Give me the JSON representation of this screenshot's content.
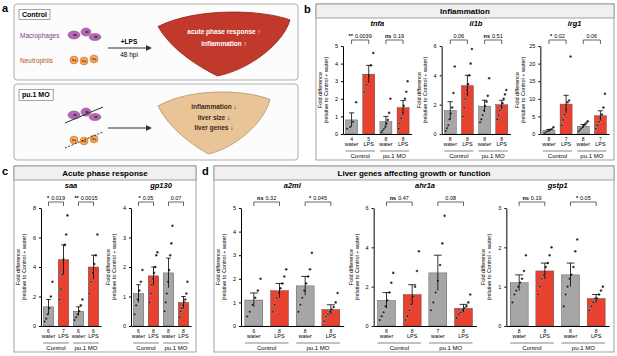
{
  "diagram": {
    "label": "a",
    "cell_labels": [
      "Macrophages",
      "Neutrophils"
    ],
    "treatment": "+LPS",
    "time": "48 hpi",
    "rows": [
      {
        "title": "Control",
        "outcomes": [
          "acute phase response ↑",
          "inflammation ↑"
        ]
      },
      {
        "title": "pu.1 MO",
        "outcomes": [
          "inflammation ↓",
          "liver size ↓",
          "liver genes ↓"
        ]
      }
    ]
  },
  "sections": [
    {
      "label": "b",
      "title": "Inflammation"
    },
    {
      "label": "c",
      "title": "Acute phase response"
    },
    {
      "label": "d",
      "title": "Liver genes affecting growth or function"
    }
  ],
  "chart_data": [
    {
      "type": "bar",
      "title": "tnfa",
      "ylabel": [
        "Fold difference",
        "(relative to Control + water)"
      ],
      "categories": [
        "water",
        "LPS",
        "water",
        "LPS"
      ],
      "groups": [
        "Control",
        "pu.1 MO"
      ],
      "values": [
        0.8,
        3.4,
        0.7,
        1.5
      ],
      "errors": [
        0.4,
        0.5,
        0.3,
        0.4
      ],
      "n": [
        4,
        5,
        8,
        8
      ],
      "points": [
        [
          0.3,
          0.4,
          0.7,
          1.8
        ],
        [
          2.4,
          2.8,
          3.3,
          3.9,
          4.6
        ],
        [
          0.1,
          0.2,
          0.3,
          0.4,
          0.6,
          0.8,
          1.2,
          2.0
        ],
        [
          0.3,
          0.6,
          0.9,
          1.2,
          1.6,
          2.0,
          2.4,
          3.0
        ]
      ],
      "colors": [
        "#a6a6a6",
        "#e8412f",
        "#a6a6a6",
        "#e8412f"
      ],
      "ylim": [
        0,
        5
      ],
      "yticks": [
        0,
        1,
        2,
        3,
        4,
        5
      ],
      "comparisons": [
        {
          "between": [
            0,
            1
          ],
          "p": 0.0039,
          "label": "**"
        },
        {
          "between": [
            2,
            3
          ],
          "p": 0.19,
          "label": "ns"
        }
      ]
    },
    {
      "type": "bar",
      "title": "il1b",
      "ylabel": [
        "Fold difference",
        "(relative to Control + water)"
      ],
      "categories": [
        "water",
        "LPS",
        "water",
        "LPS"
      ],
      "groups": [
        "Control",
        "pu.1 MO"
      ],
      "values": [
        1.6,
        3.3,
        1.9,
        2.0
      ],
      "errors": [
        0.6,
        0.7,
        0.4,
        0.3
      ],
      "n": [
        8,
        8,
        8,
        8
      ],
      "points": [
        [
          0.2,
          0.4,
          0.6,
          1.0,
          1.4,
          1.8,
          2.8,
          4.6
        ],
        [
          1.2,
          1.8,
          2.4,
          3.0,
          3.4,
          4.0,
          4.8,
          5.8
        ],
        [
          0.8,
          1.0,
          1.3,
          1.6,
          1.9,
          2.2,
          2.6,
          3.8
        ],
        [
          1.0,
          1.3,
          1.6,
          1.9,
          2.1,
          2.4,
          2.7,
          3.0
        ]
      ],
      "colors": [
        "#a6a6a6",
        "#e8412f",
        "#a6a6a6",
        "#e8412f"
      ],
      "ylim": [
        0,
        6
      ],
      "yticks": [
        0,
        2,
        4,
        6
      ],
      "comparisons": [
        {
          "between": [
            0,
            1
          ],
          "p": 0.06
        },
        {
          "between": [
            2,
            3
          ],
          "p": 0.51,
          "label": "ns"
        }
      ]
    },
    {
      "type": "bar",
      "title": "irg1",
      "ylabel": [
        "Fold difference",
        "(relative to Control + water)"
      ],
      "categories": [
        "water",
        "LPS",
        "water",
        "LPS"
      ],
      "groups": [
        "Control",
        "pu.1 MO"
      ],
      "values": [
        1.0,
        8.5,
        2.2,
        5.2
      ],
      "errors": [
        0.3,
        2.5,
        0.5,
        1.4
      ],
      "n": [
        8,
        7,
        8,
        7
      ],
      "points": [
        [
          0.3,
          0.5,
          0.7,
          0.9,
          1.1,
          1.2,
          1.4,
          1.9
        ],
        [
          2.5,
          4.0,
          5.5,
          7.0,
          9.0,
          9.5,
          22.0
        ],
        [
          0.8,
          1.2,
          1.6,
          2.0,
          2.4,
          2.8,
          3.2,
          3.6
        ],
        [
          1.5,
          2.5,
          3.5,
          4.5,
          5.5,
          7.5,
          11.4
        ]
      ],
      "colors": [
        "#a6a6a6",
        "#e8412f",
        "#a6a6a6",
        "#e8412f"
      ],
      "ylim": [
        0,
        25
      ],
      "yticks": [
        0,
        5,
        10,
        15,
        20,
        25
      ],
      "comparisons": [
        {
          "between": [
            0,
            1
          ],
          "p": 0.02,
          "label": "*"
        },
        {
          "between": [
            2,
            3
          ],
          "p": 0.06
        }
      ]
    },
    {
      "type": "bar",
      "title": "saa",
      "ylabel": [
        "Fold difference",
        "(relative to Control + water)"
      ],
      "categories": [
        "water",
        "LPS",
        "water",
        "LPS"
      ],
      "groups": [
        "Control",
        "pu.1 MO"
      ],
      "values": [
        1.3,
        4.5,
        1.0,
        4.0
      ],
      "errors": [
        0.5,
        1.0,
        0.3,
        0.8
      ],
      "n": [
        6,
        7,
        6,
        6
      ],
      "points": [
        [
          0.3,
          0.5,
          0.8,
          1.2,
          2.0,
          3.0
        ],
        [
          1.8,
          2.5,
          3.5,
          4.5,
          5.5,
          6.2,
          7.5
        ],
        [
          0.4,
          0.6,
          0.8,
          1.0,
          1.4,
          1.8
        ],
        [
          2.2,
          3.0,
          3.6,
          4.2,
          4.8,
          6.2
        ]
      ],
      "colors": [
        "#a6a6a6",
        "#e8412f",
        "#a6a6a6",
        "#e8412f"
      ],
      "ylim": [
        0,
        8
      ],
      "yticks": [
        0,
        2,
        4,
        6,
        8
      ],
      "comparisons": [
        {
          "between": [
            0,
            1
          ],
          "p": 0.019,
          "label": "*"
        },
        {
          "between": [
            2,
            3
          ],
          "p": 0.0015,
          "label": "**"
        }
      ]
    },
    {
      "type": "bar",
      "title": "gp130",
      "ylabel": [
        "Fold difference",
        "(relative to Control + water)"
      ],
      "categories": [
        "water",
        "LPS",
        "water",
        "LPS"
      ],
      "groups": [
        "Control",
        "pu.1 MO"
      ],
      "values": [
        1.1,
        1.7,
        1.8,
        0.8
      ],
      "errors": [
        0.3,
        0.3,
        0.5,
        0.2
      ],
      "n": [
        6,
        8,
        8,
        8
      ],
      "points": [
        [
          0.4,
          0.7,
          0.9,
          1.2,
          1.5,
          1.9
        ],
        [
          0.8,
          1.1,
          1.4,
          1.6,
          1.8,
          2.0,
          2.4,
          2.5
        ],
        [
          0.5,
          0.8,
          1.1,
          1.5,
          1.9,
          2.4,
          2.8,
          3.4
        ],
        [
          0.3,
          0.5,
          0.6,
          0.7,
          0.8,
          0.9,
          1.1,
          1.5
        ]
      ],
      "colors": [
        "#a6a6a6",
        "#e8412f",
        "#a6a6a6",
        "#e8412f"
      ],
      "ylim": [
        0,
        4
      ],
      "yticks": [
        0,
        1,
        2,
        3,
        4
      ],
      "comparisons": [
        {
          "between": [
            0,
            1
          ],
          "p": 0.05,
          "label": "*"
        },
        {
          "between": [
            2,
            3
          ],
          "p": 0.07
        }
      ]
    },
    {
      "type": "bar",
      "title": "a2ml",
      "ylabel": [
        "Fold difference",
        "(relative to Control + water)"
      ],
      "categories": [
        "water",
        "LPS",
        "water",
        "LPS"
      ],
      "groups": [
        "Control",
        "pu.1 MO"
      ],
      "values": [
        1.1,
        1.5,
        1.7,
        0.7
      ],
      "errors": [
        0.3,
        0.3,
        0.4,
        0.2
      ],
      "n": [
        6,
        8,
        8,
        8
      ],
      "points": [
        [
          0.4,
          0.6,
          0.9,
          1.2,
          1.5,
          2.0
        ],
        [
          0.6,
          0.9,
          1.2,
          1.4,
          1.6,
          1.8,
          2.1,
          2.4
        ],
        [
          0.6,
          0.9,
          1.2,
          1.5,
          1.8,
          2.1,
          2.4,
          3.1
        ],
        [
          0.2,
          0.4,
          0.5,
          0.6,
          0.7,
          0.8,
          1.0,
          1.4
        ]
      ],
      "colors": [
        "#a6a6a6",
        "#e8412f",
        "#a6a6a6",
        "#e8412f"
      ],
      "ylim": [
        0,
        5
      ],
      "yticks": [
        0,
        1,
        2,
        3,
        4,
        5
      ],
      "comparisons": [
        {
          "between": [
            0,
            1
          ],
          "p": 0.32,
          "label": "ns"
        },
        {
          "between": [
            2,
            3
          ],
          "p": 0.045,
          "label": "*"
        }
      ]
    },
    {
      "type": "bar",
      "title": "ahr1a",
      "ylabel": [
        "Fold difference",
        "(relative to Control + water)"
      ],
      "categories": [
        "water",
        "LPS",
        "water",
        "LPS"
      ],
      "groups": [
        "Control",
        "pu.1 MO"
      ],
      "values": [
        1.3,
        1.6,
        2.7,
        0.9
      ],
      "errors": [
        0.4,
        0.5,
        0.9,
        0.2
      ],
      "n": [
        8,
        8,
        7,
        8
      ],
      "points": [
        [
          0.3,
          0.5,
          0.7,
          1.0,
          1.3,
          1.7,
          2.2,
          2.7
        ],
        [
          0.3,
          0.5,
          0.8,
          1.1,
          1.5,
          2.0,
          2.8,
          3.8
        ],
        [
          0.8,
          1.2,
          1.7,
          2.3,
          3.1,
          4.2,
          5.6
        ],
        [
          0.4,
          0.6,
          0.7,
          0.8,
          0.9,
          1.0,
          1.2,
          1.6
        ]
      ],
      "colors": [
        "#a6a6a6",
        "#e8412f",
        "#a6a6a6",
        "#e8412f"
      ],
      "ylim": [
        0,
        6
      ],
      "yticks": [
        0,
        2,
        4,
        6
      ],
      "comparisons": [
        {
          "between": [
            0,
            1
          ],
          "p": 0.47,
          "label": "ns"
        },
        {
          "between": [
            2,
            3
          ],
          "p": 0.08
        }
      ]
    },
    {
      "type": "bar",
      "title": "gstp1",
      "ylabel": [
        "Fold difference",
        "(relative to Control + water)"
      ],
      "categories": [
        "water",
        "LPS",
        "water",
        "LPS"
      ],
      "groups": [
        "Control",
        "pu.1 MO"
      ],
      "values": [
        1.1,
        1.4,
        1.3,
        0.7
      ],
      "errors": [
        0.2,
        0.2,
        0.3,
        0.1
      ],
      "n": [
        8,
        8,
        8,
        8
      ],
      "points": [
        [
          0.6,
          0.8,
          0.9,
          1.0,
          1.1,
          1.2,
          1.4,
          1.8
        ],
        [
          0.8,
          1.0,
          1.2,
          1.3,
          1.5,
          1.6,
          1.8,
          2.0
        ],
        [
          0.5,
          0.8,
          1.0,
          1.2,
          1.3,
          1.5,
          1.9,
          2.2
        ],
        [
          0.4,
          0.5,
          0.6,
          0.7,
          0.7,
          0.8,
          0.9,
          1.0
        ]
      ],
      "colors": [
        "#a6a6a6",
        "#e8412f",
        "#a6a6a6",
        "#e8412f"
      ],
      "ylim": [
        0,
        3
      ],
      "yticks": [
        0,
        1,
        2,
        3
      ],
      "comparisons": [
        {
          "between": [
            0,
            1
          ],
          "p": 0.19,
          "label": "ns"
        },
        {
          "between": [
            2,
            3
          ],
          "p": 0.05,
          "label": "*"
        }
      ]
    }
  ]
}
